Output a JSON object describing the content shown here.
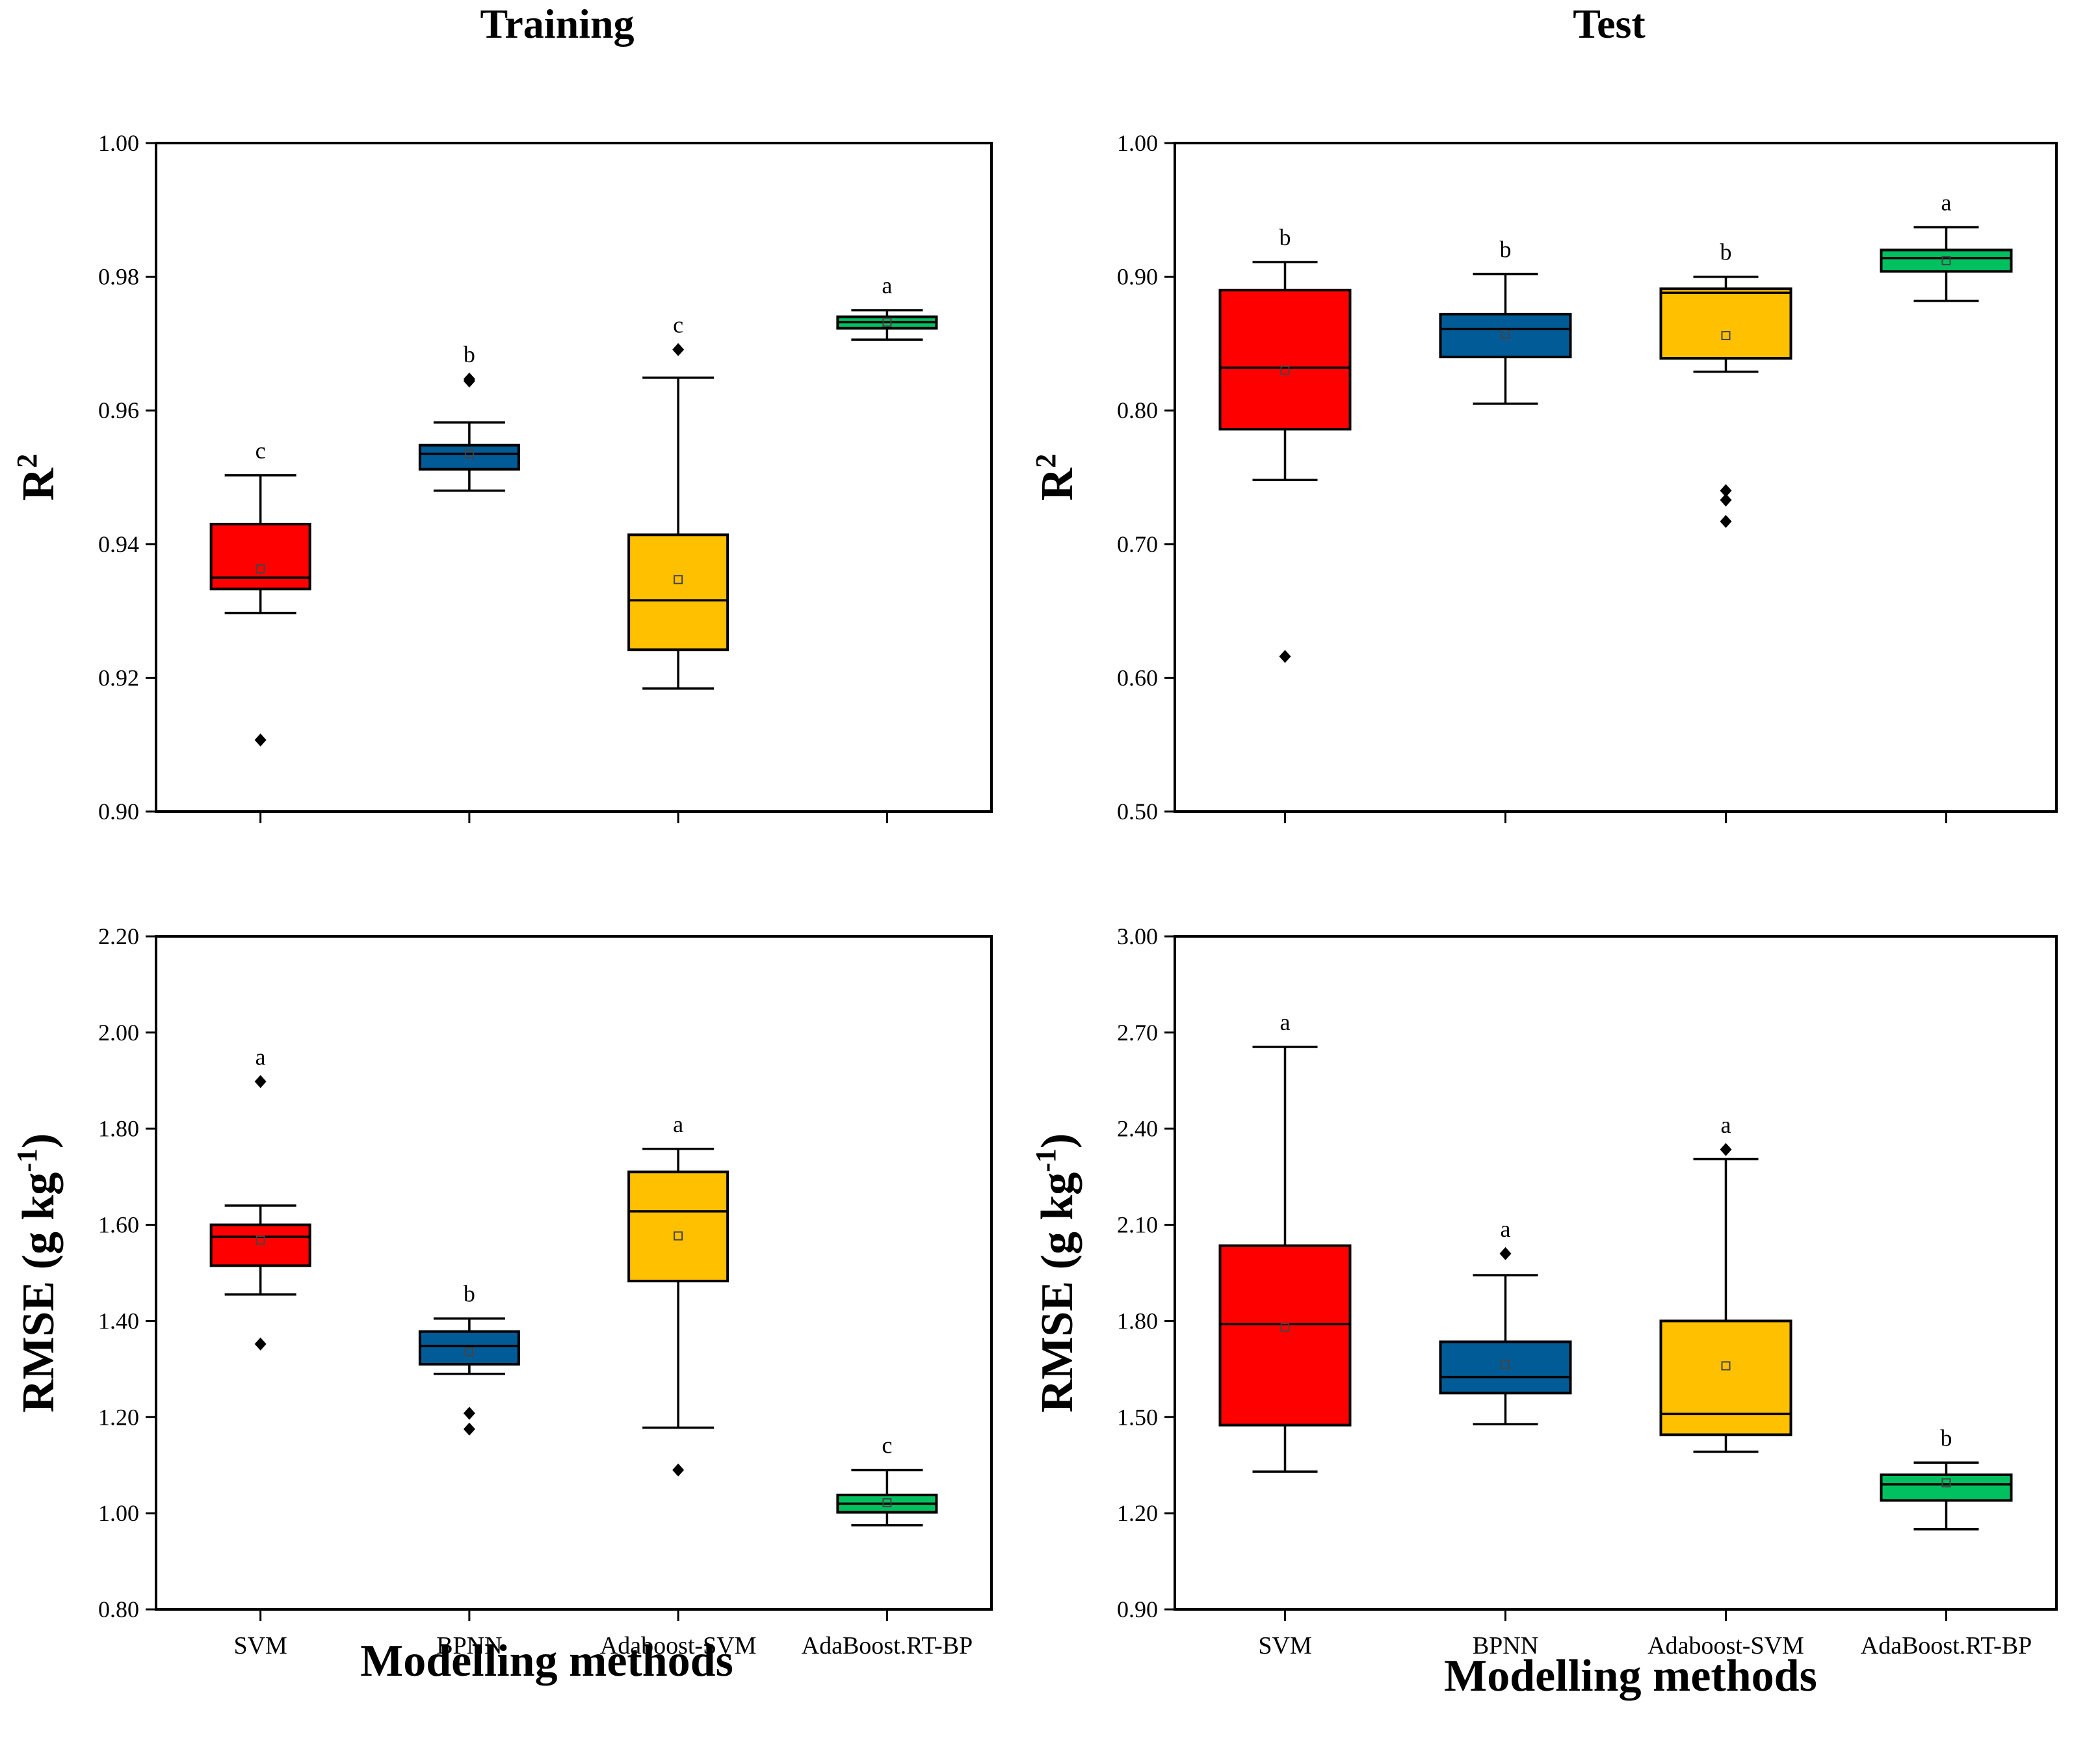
{
  "figure": {
    "column_titles": [
      "Training",
      "Test"
    ],
    "x_axis_title": "Modelling methods",
    "r2_label": "R",
    "r2_sup": "2",
    "rmse_label": "RMSE (g kg",
    "rmse_sup": "-1",
    "rmse_close": ")"
  },
  "colors": {
    "SVM": "#ff0000",
    "BPNN": "#005b96",
    "Adaboost-SVM": "#ffc000",
    "AdaBoost.RT-BP": "#00c060"
  },
  "chart_data": [
    {
      "id": "train_r2",
      "type": "box",
      "title": "Training",
      "xlabel": "",
      "ylabel": "R2",
      "ylim": [
        0.9,
        1.0
      ],
      "yticks": [
        0.9,
        0.92,
        0.94,
        0.96,
        0.98,
        1.0
      ],
      "ytick_labels": [
        "0.90",
        "0.92",
        "0.94",
        "0.96",
        "0.98",
        "1.00"
      ],
      "categories": [
        "SVM",
        "BPNN",
        "Adaboost-SVM",
        "AdaBoost.RT-BP"
      ],
      "show_category_labels": false,
      "boxes": [
        {
          "whisker_low": 0.9297,
          "q1": 0.9333,
          "median": 0.935,
          "q3": 0.943,
          "whisker_high": 0.9503,
          "mean": 0.9363,
          "outliers": [
            0.9107
          ],
          "letter": "c"
        },
        {
          "whisker_low": 0.948,
          "q1": 0.9512,
          "median": 0.9535,
          "q3": 0.9548,
          "whisker_high": 0.9582,
          "mean": 0.9535,
          "outliers": [
            0.9647,
            0.9644
          ],
          "letter": "b"
        },
        {
          "whisker_low": 0.9184,
          "q1": 0.9242,
          "median": 0.9316,
          "q3": 0.9414,
          "whisker_high": 0.9649,
          "mean": 0.9347,
          "outliers": [
            0.9691
          ],
          "letter": "c"
        },
        {
          "whisker_low": 0.9706,
          "q1": 0.9723,
          "median": 0.9732,
          "q3": 0.974,
          "whisker_high": 0.975,
          "mean": 0.9732,
          "outliers": [],
          "letter": "a"
        }
      ]
    },
    {
      "id": "test_r2",
      "type": "box",
      "title": "Test",
      "xlabel": "",
      "ylabel": "R2",
      "ylim": [
        0.5,
        1.0
      ],
      "yticks": [
        0.5,
        0.6,
        0.7,
        0.8,
        0.9,
        1.0
      ],
      "ytick_labels": [
        "0.50",
        "0.60",
        "0.70",
        "0.80",
        "0.90",
        "1.00"
      ],
      "categories": [
        "SVM",
        "BPNN",
        "Adaboost-SVM",
        "AdaBoost.RT-BP"
      ],
      "show_category_labels": false,
      "boxes": [
        {
          "whisker_low": 0.748,
          "q1": 0.786,
          "median": 0.832,
          "q3": 0.89,
          "whisker_high": 0.911,
          "mean": 0.83,
          "outliers": [
            0.616
          ],
          "letter": "b"
        },
        {
          "whisker_low": 0.805,
          "q1": 0.84,
          "median": 0.861,
          "q3": 0.872,
          "whisker_high": 0.902,
          "mean": 0.857,
          "outliers": [],
          "letter": "b"
        },
        {
          "whisker_low": 0.829,
          "q1": 0.839,
          "median": 0.888,
          "q3": 0.891,
          "whisker_high": 0.9,
          "mean": 0.856,
          "outliers": [
            0.74,
            0.733,
            0.717
          ],
          "letter": "b"
        },
        {
          "whisker_low": 0.882,
          "q1": 0.904,
          "median": 0.914,
          "q3": 0.92,
          "whisker_high": 0.937,
          "mean": 0.912,
          "outliers": [],
          "letter": "a"
        }
      ]
    },
    {
      "id": "train_rmse",
      "type": "box",
      "title": "",
      "xlabel": "Modelling methods",
      "ylabel": "RMSE (g kg-1)",
      "ylim": [
        0.8,
        2.2
      ],
      "yticks": [
        0.8,
        1.0,
        1.2,
        1.4,
        1.6,
        1.8,
        2.0,
        2.2
      ],
      "ytick_labels": [
        "0.80",
        "1.00",
        "1.20",
        "1.40",
        "1.60",
        "1.80",
        "2.00",
        "2.20"
      ],
      "categories": [
        "SVM",
        "BPNN",
        "Adaboost-SVM",
        "AdaBoost.RT-BP"
      ],
      "show_category_labels": true,
      "boxes": [
        {
          "whisker_low": 1.455,
          "q1": 1.515,
          "median": 1.575,
          "q3": 1.6,
          "whisker_high": 1.64,
          "mean": 1.568,
          "outliers": [
            1.898,
            1.352
          ],
          "letter": "a"
        },
        {
          "whisker_low": 1.29,
          "q1": 1.31,
          "median": 1.348,
          "q3": 1.378,
          "whisker_high": 1.405,
          "mean": 1.336,
          "outliers": [
            1.208,
            1.175
          ],
          "letter": "b"
        },
        {
          "whisker_low": 1.178,
          "q1": 1.483,
          "median": 1.628,
          "q3": 1.71,
          "whisker_high": 1.758,
          "mean": 1.577,
          "outliers": [
            1.09
          ],
          "letter": "a"
        },
        {
          "whisker_low": 0.975,
          "q1": 1.002,
          "median": 1.02,
          "q3": 1.038,
          "whisker_high": 1.09,
          "mean": 1.022,
          "outliers": [],
          "letter": "c"
        }
      ]
    },
    {
      "id": "test_rmse",
      "type": "box",
      "title": "",
      "xlabel": "Modelling methods",
      "ylabel": "RMSE (g kg-1)",
      "ylim": [
        0.9,
        3.0
      ],
      "yticks": [
        0.9,
        1.2,
        1.5,
        1.8,
        2.1,
        2.4,
        2.7,
        3.0
      ],
      "ytick_labels": [
        "0.90",
        "1.20",
        "1.50",
        "1.80",
        "2.10",
        "2.40",
        "2.70",
        "3.00"
      ],
      "categories": [
        "SVM",
        "BPNN",
        "Adaboost-SVM",
        "AdaBoost.RT-BP"
      ],
      "show_category_labels": true,
      "boxes": [
        {
          "whisker_low": 1.33,
          "q1": 1.475,
          "median": 1.79,
          "q3": 2.035,
          "whisker_high": 2.655,
          "mean": 1.78,
          "outliers": [],
          "letter": "a"
        },
        {
          "whisker_low": 1.478,
          "q1": 1.575,
          "median": 1.625,
          "q3": 1.735,
          "whisker_high": 1.943,
          "mean": 1.665,
          "outliers": [
            2.01
          ],
          "letter": "a"
        },
        {
          "whisker_low": 1.392,
          "q1": 1.445,
          "median": 1.51,
          "q3": 1.8,
          "whisker_high": 2.305,
          "mean": 1.66,
          "outliers": [
            2.335
          ],
          "letter": "a"
        },
        {
          "whisker_low": 1.15,
          "q1": 1.24,
          "median": 1.29,
          "q3": 1.32,
          "whisker_high": 1.358,
          "mean": 1.295,
          "outliers": [],
          "letter": "b"
        }
      ]
    }
  ]
}
